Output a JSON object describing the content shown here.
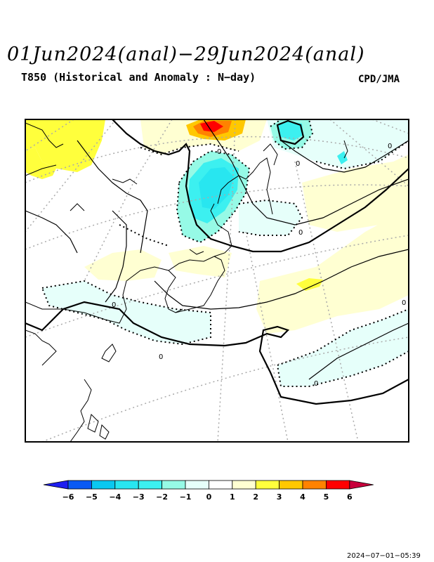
{
  "header": {
    "title": "01Jun2024(anal)−29Jun2024(anal)",
    "subtitle": "T850 (Historical and Anomaly : N−day)",
    "agency": "CPD/JMA"
  },
  "map": {
    "contour_labels": [
      "0",
      "0",
      "0",
      "0",
      "0",
      "0",
      "0",
      "0"
    ]
  },
  "colorbar": {
    "ticks": [
      "−6",
      "−5",
      "−4",
      "−3",
      "−2",
      "−1",
      "0",
      "1",
      "2",
      "3",
      "4",
      "5",
      "6"
    ],
    "colors": {
      "below": "#1e1ef0",
      "c_6": "#0a5af5",
      "c_5": "#0ac8f0",
      "c_4": "#28e6f0",
      "c_3": "#3cf0f0",
      "c_2": "#96fae6",
      "c_1": "#e6fffa",
      "c0": "#ffffff",
      "c1": "#ffffd2",
      "c2": "#ffff3c",
      "c3": "#ffc800",
      "c4": "#ff8200",
      "c5": "#ff0000",
      "above": "#c8003c"
    }
  },
  "footer": {
    "timestamp": "2024−07−01−05:39"
  }
}
